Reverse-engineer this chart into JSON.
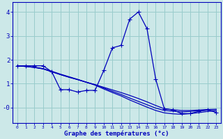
{
  "x": [
    0,
    1,
    2,
    3,
    4,
    5,
    6,
    7,
    8,
    9,
    10,
    11,
    12,
    13,
    14,
    15,
    16,
    17,
    18,
    19,
    20,
    21,
    22,
    23
  ],
  "line1": [
    1.75,
    1.75,
    1.75,
    1.75,
    1.5,
    0.75,
    0.75,
    0.65,
    0.72,
    0.72,
    1.55,
    2.5,
    2.6,
    3.7,
    4.0,
    3.3,
    1.2,
    -0.05,
    -0.1,
    -0.25,
    -0.25,
    -0.15,
    -0.1,
    -0.2
  ],
  "line2": [
    1.75,
    1.72,
    1.68,
    1.62,
    1.5,
    1.38,
    1.27,
    1.17,
    1.06,
    0.96,
    0.85,
    0.74,
    0.63,
    0.51,
    0.38,
    0.24,
    0.09,
    -0.05,
    -0.09,
    -0.12,
    -0.12,
    -0.1,
    -0.08,
    -0.07
  ],
  "line3": [
    1.75,
    1.72,
    1.68,
    1.62,
    1.5,
    1.38,
    1.27,
    1.17,
    1.06,
    0.96,
    0.82,
    0.68,
    0.55,
    0.4,
    0.26,
    0.12,
    -0.02,
    -0.12,
    -0.15,
    -0.18,
    -0.16,
    -0.13,
    -0.1,
    -0.08
  ],
  "line4": [
    1.75,
    1.73,
    1.69,
    1.63,
    1.52,
    1.4,
    1.29,
    1.18,
    1.06,
    0.94,
    0.78,
    0.63,
    0.49,
    0.32,
    0.17,
    0.02,
    -0.12,
    -0.22,
    -0.26,
    -0.28,
    -0.25,
    -0.21,
    -0.16,
    -0.13
  ],
  "bg_color": "#cce8e8",
  "line_color": "#0000bb",
  "grid_color": "#99cccc",
  "xlabel": "Graphe des températures (°c)",
  "ylim": [
    -0.65,
    4.4
  ],
  "xlim": [
    -0.5,
    23.5
  ],
  "yticks": [
    0,
    1,
    2,
    3,
    4
  ],
  "ytick_labels": [
    "-0",
    "1",
    "2",
    "3",
    "4"
  ],
  "xticks": [
    0,
    1,
    2,
    3,
    4,
    5,
    6,
    7,
    8,
    9,
    10,
    11,
    12,
    13,
    14,
    15,
    16,
    17,
    18,
    19,
    20,
    21,
    22,
    23
  ]
}
